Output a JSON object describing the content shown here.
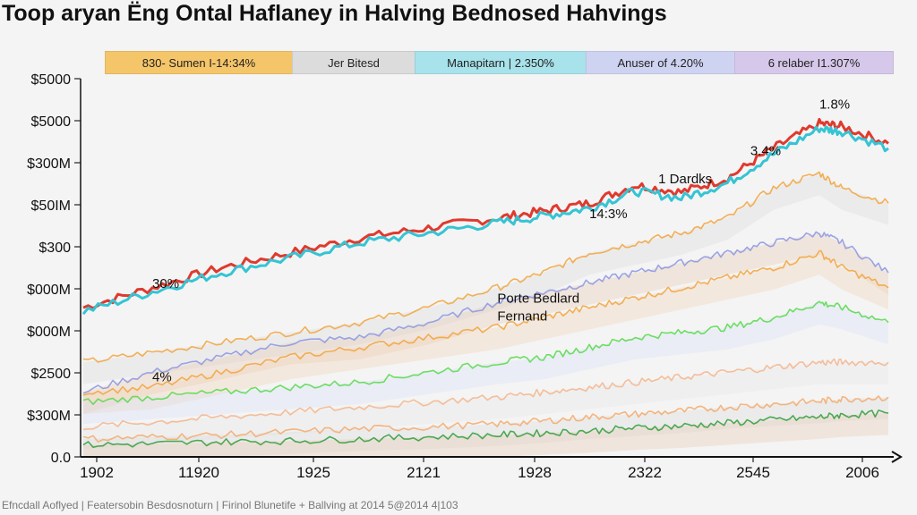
{
  "chart_data": {
    "type": "area",
    "title": "Toop aryan Ëng Ontal Haflaney in Halving Bednosed Hahvings",
    "xlabel": "",
    "ylabel": "",
    "x_ticks": [
      "1902",
      "11920",
      "1925",
      "2121",
      "1928",
      "2322",
      "2545",
      "2006"
    ],
    "y_ticks": [
      "$5000",
      "$5000",
      "$300M",
      "$50IM",
      "$300",
      "$000M",
      "$000M",
      "$2500",
      "$300M",
      "0.0"
    ],
    "legend": [
      {
        "label": "830- Sumen I-14:34%",
        "color": "#f5c56a"
      },
      {
        "label": "Jer Bitesd",
        "color": "#dcdcdc"
      },
      {
        "label": "Manapitarn | 2.350%",
        "color": "#a8e2ea"
      },
      {
        "label": "Anuser of 4.20%",
        "color": "#cfd3f2"
      },
      {
        "label": "6 relaber I1.307%",
        "color": "#d6c8ea"
      }
    ],
    "annotations": [
      {
        "text": "30%",
        "x": 1905,
        "y": 17
      },
      {
        "text": "Porte Bedlard",
        "x": 1920,
        "y": 15.5
      },
      {
        "text": "Fernand",
        "x": 1920,
        "y": 13.7
      },
      {
        "text": "14:3%",
        "x": 1924,
        "y": 24
      },
      {
        "text": "1 Dardks",
        "x": 1927,
        "y": 27.5
      },
      {
        "text": "3.4%",
        "x": 1931,
        "y": 30.3
      },
      {
        "text": "1.8%",
        "x": 1934,
        "y": 35
      },
      {
        "text": "4%",
        "x": 1905,
        "y": 7.6
      }
    ],
    "x_range": [
      1902,
      1937
    ],
    "y_range": [
      0,
      38
    ],
    "x": [
      1902,
      1905,
      1908,
      1911,
      1914,
      1917,
      1920,
      1922,
      1924,
      1926,
      1928,
      1930,
      1932,
      1934,
      1935,
      1937
    ],
    "series": [
      {
        "name": "red",
        "color": "#e03a2e",
        "values": [
          15,
          17,
          19,
          20.5,
          22,
          23,
          24,
          24.7,
          25.5,
          27.3,
          26.6,
          28,
          31,
          33.5,
          33.2,
          31.5
        ]
      },
      {
        "name": "cyan",
        "color": "#35c4d4",
        "values": [
          14.6,
          16.6,
          18.5,
          20,
          21.5,
          22.5,
          23.5,
          24.2,
          25,
          26.7,
          26,
          27.5,
          30.4,
          33,
          32.7,
          31
        ]
      },
      {
        "name": "orange-top",
        "color": "#f2a33a",
        "values": [
          9.5,
          10.5,
          11.5,
          12.5,
          13.5,
          15,
          17,
          18.5,
          20.5,
          21.5,
          22.5,
          24,
          27,
          28.5,
          27,
          25.5
        ]
      },
      {
        "name": "blue",
        "color": "#8b95e3",
        "values": [
          6.5,
          8.5,
          10,
          11.5,
          12,
          13.5,
          15.5,
          16.5,
          17.5,
          18.5,
          19.5,
          20.5,
          21.5,
          22.5,
          21.5,
          18.5
        ]
      },
      {
        "name": "orange-mid",
        "color": "#f2a33a",
        "values": [
          6.5,
          7,
          8.5,
          10,
          11,
          12,
          13,
          14,
          15,
          16,
          17,
          18,
          19,
          20.5,
          19,
          17
        ]
      },
      {
        "name": "green",
        "color": "#55d94a",
        "values": [
          5.5,
          6,
          6.5,
          7,
          7.5,
          8.5,
          9.5,
          10,
          11,
          12,
          12.5,
          13,
          14,
          15.5,
          15,
          13.5
        ]
      },
      {
        "name": "peach",
        "color": "#f5b48a",
        "values": [
          3,
          3.5,
          4,
          4.5,
          5,
          5.5,
          6,
          6.5,
          7,
          7.5,
          8,
          8.5,
          9,
          9.5,
          9.5,
          9.5
        ]
      },
      {
        "name": "orange-low",
        "color": "#f5a96a",
        "values": [
          1.8,
          2,
          2.2,
          2.5,
          2.8,
          3,
          3.3,
          3.6,
          4,
          4.3,
          4.6,
          5,
          5.3,
          5.6,
          5.8,
          6
        ]
      },
      {
        "name": "dark-green",
        "color": "#2f9e3a",
        "values": [
          1.2,
          1.3,
          1.5,
          1.6,
          1.8,
          2,
          2.2,
          2.4,
          2.6,
          2.9,
          3.1,
          3.4,
          3.7,
          4,
          4.2,
          4.4
        ]
      }
    ]
  },
  "footer": "Efncdall Aoflyed | Featersobin Besdosnoturn | Firinol Blunetife + Ballving at 2014 5@2014 4|103"
}
